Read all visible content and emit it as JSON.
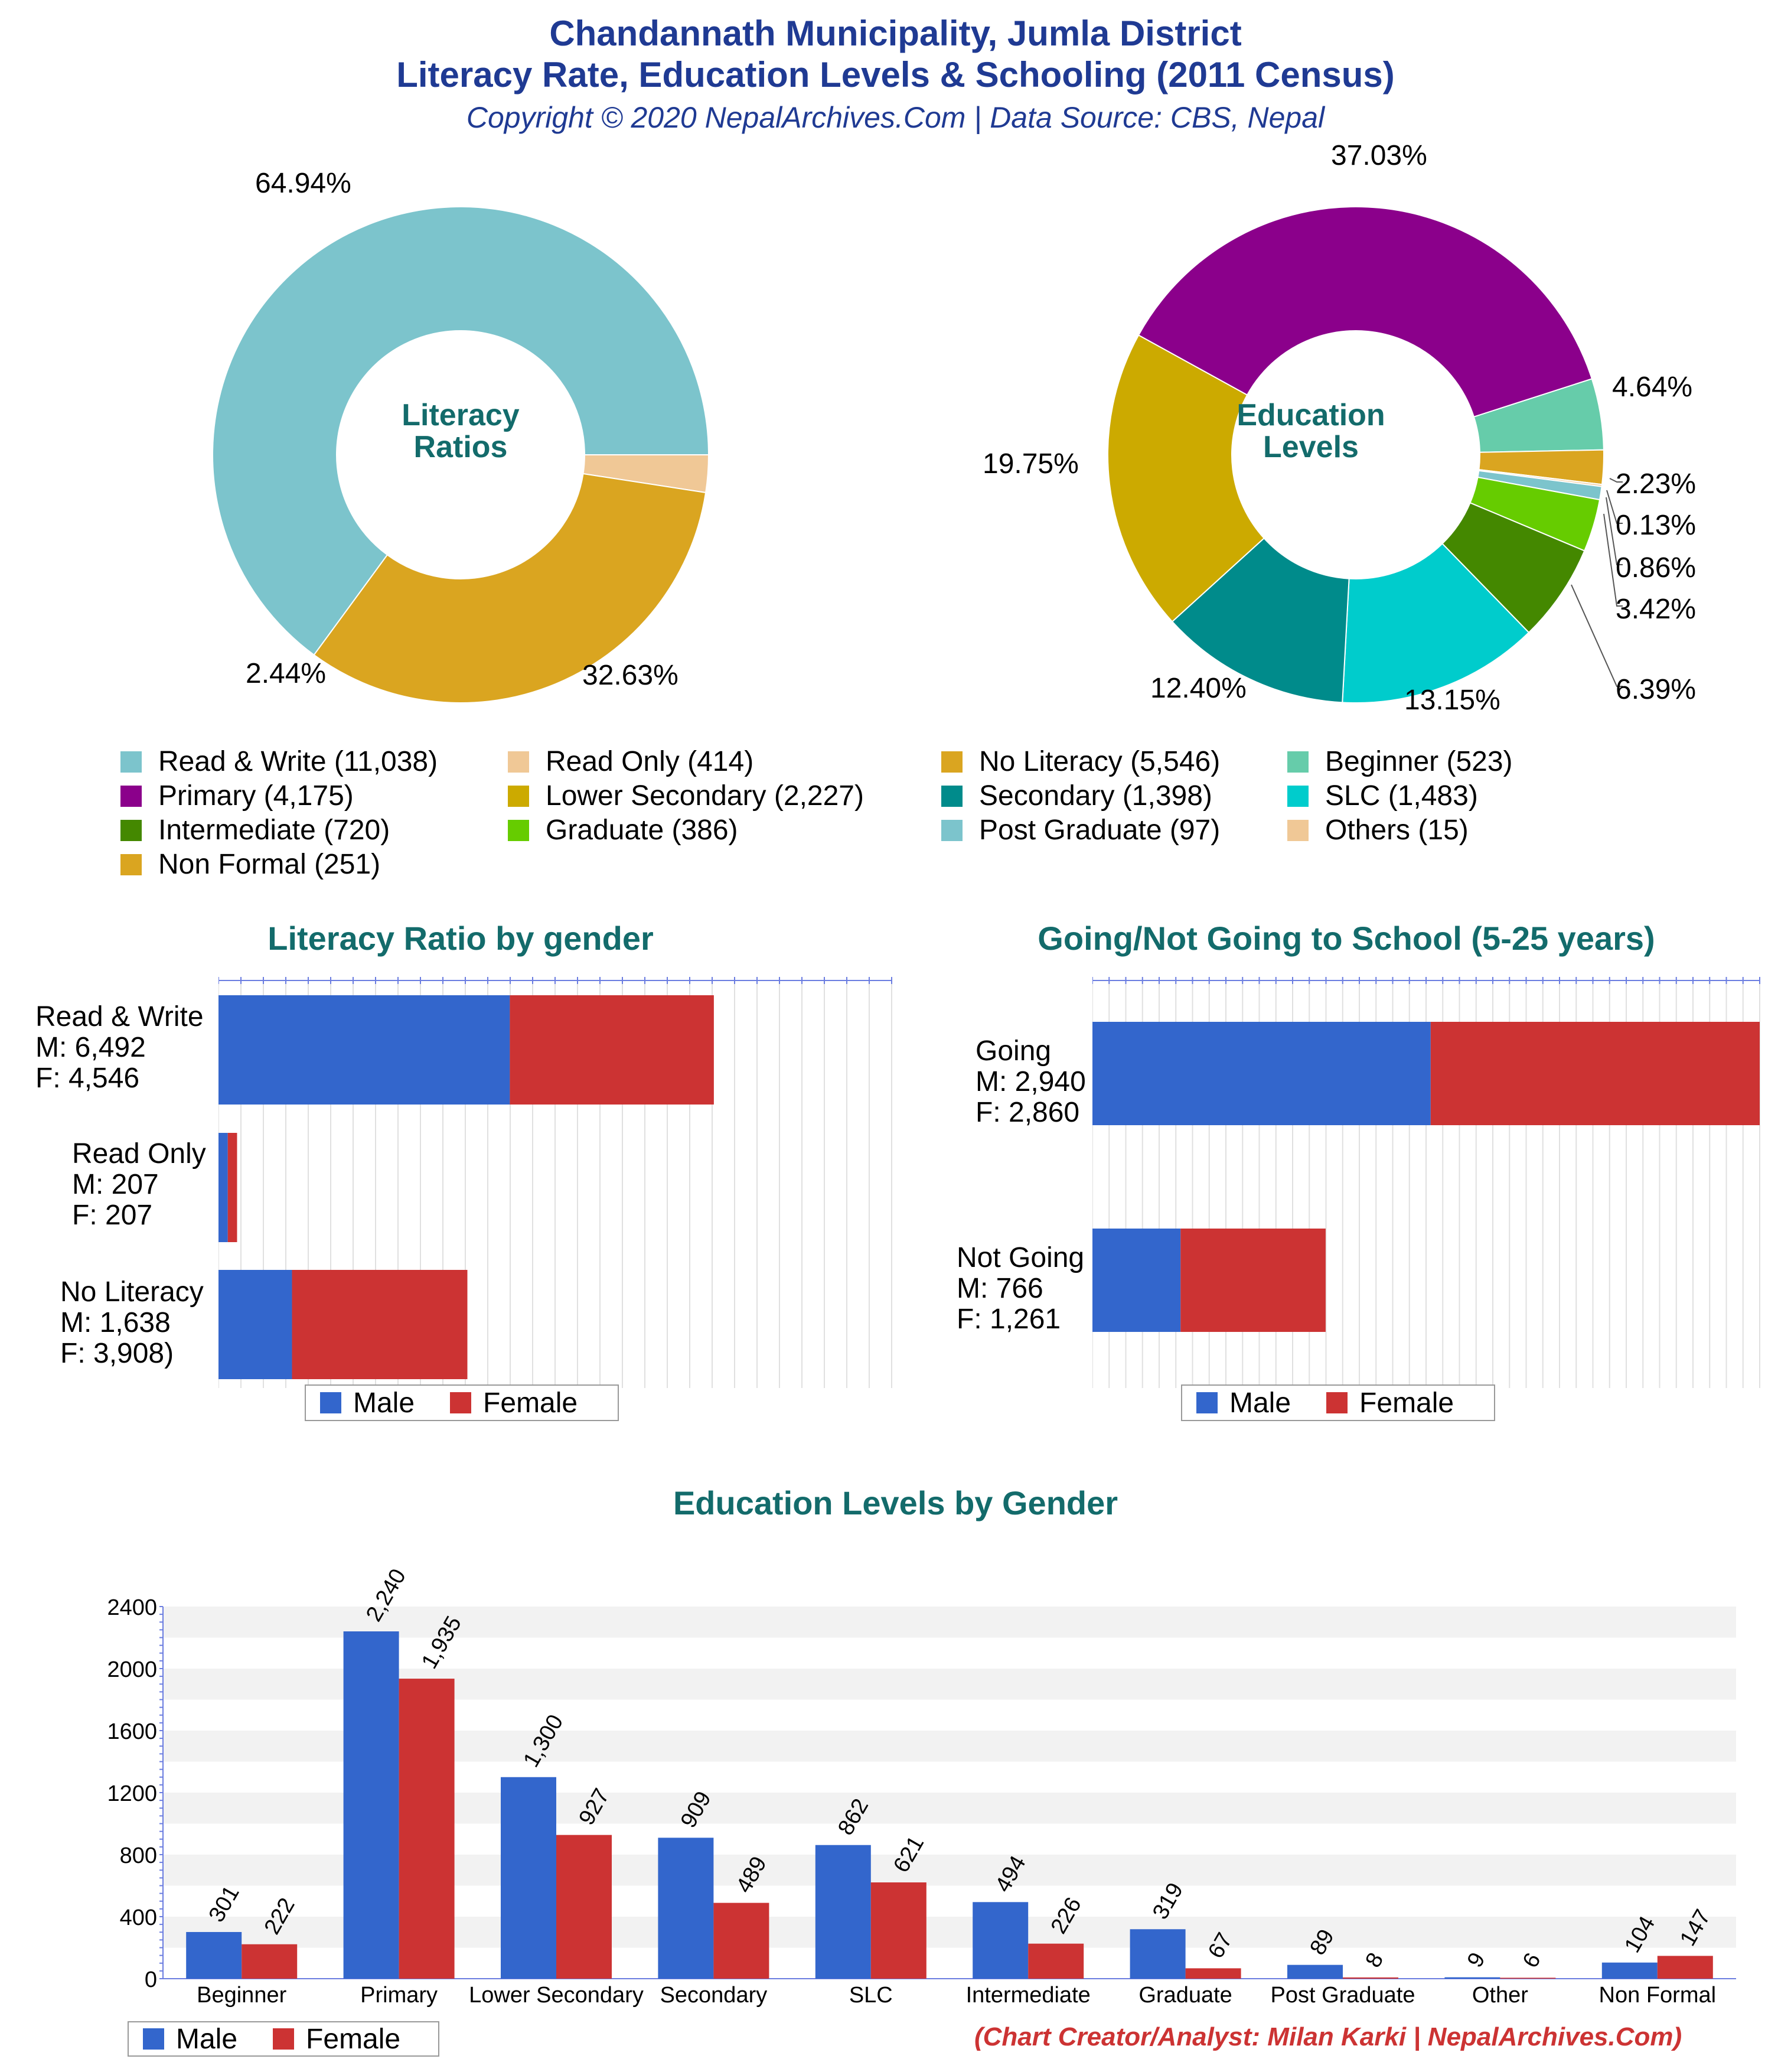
{
  "header": {
    "title_line1": "Chandannath Municipality, Jumla District",
    "title_line2": "Literacy Rate, Education Levels & Schooling (2011 Census)",
    "copyright": "Copyright © 2020 NepalArchives.Com | Data Source: CBS, Nepal"
  },
  "colors": {
    "male": "#3366cc",
    "female": "#cc3333",
    "title": "#1f3a93",
    "section_title": "#136b6b"
  },
  "chart_data": [
    {
      "type": "pie",
      "center_label": [
        "Literacy",
        "Ratios"
      ],
      "slices": [
        {
          "label": "Read & Write",
          "value": 11038,
          "percent": "64.94%",
          "color": "#7cc4cc"
        },
        {
          "label": "Read Only",
          "value": 414,
          "percent": "2.44%",
          "color": "#f0c896"
        },
        {
          "label": "No Literacy",
          "value": 5546,
          "percent": "32.63%",
          "color": "#daa520"
        }
      ]
    },
    {
      "type": "pie",
      "center_label": [
        "Education",
        "Levels"
      ],
      "slices": [
        {
          "label": "Beginner",
          "value": 523,
          "percent": "4.64%",
          "color": "#66ccaa"
        },
        {
          "label": "Non Formal",
          "value": 251,
          "percent": "2.23%",
          "color": "#daa520"
        },
        {
          "label": "Others",
          "value": 15,
          "percent": "0.13%",
          "color": "#f0c896"
        },
        {
          "label": "Post Graduate",
          "value": 97,
          "percent": "0.86%",
          "color": "#7cc4cc"
        },
        {
          "label": "Graduate",
          "value": 386,
          "percent": "3.42%",
          "color": "#66cc00"
        },
        {
          "label": "Intermediate",
          "value": 720,
          "percent": "6.39%",
          "color": "#448800"
        },
        {
          "label": "SLC",
          "value": 1483,
          "percent": "13.15%",
          "color": "#00cccc"
        },
        {
          "label": "Secondary",
          "value": 1398,
          "percent": "12.40%",
          "color": "#008b8b"
        },
        {
          "label": "Lower Secondary",
          "value": 2227,
          "percent": "19.75%",
          "color": "#ccaa00"
        },
        {
          "label": "Primary",
          "value": 4175,
          "percent": "37.03%",
          "color": "#8b008b"
        }
      ]
    },
    {
      "type": "bar",
      "orientation": "horizontal-stacked",
      "title": "Literacy Ratio by gender",
      "categories": [
        "Read & Write",
        "Read Only",
        "No Literacy"
      ],
      "category_labels": [
        [
          "Read & Write",
          "M: 6,492",
          "F: 4,546"
        ],
        [
          "Read Only",
          "M: 207",
          "F: 207"
        ],
        [
          "No Literacy",
          "M: 1,638",
          "F: 3,908)"
        ]
      ],
      "series": [
        {
          "name": "Male",
          "values": [
            6492,
            207,
            1638
          ]
        },
        {
          "name": "Female",
          "values": [
            4546,
            207,
            3908
          ]
        }
      ],
      "xlim": [
        0,
        15000
      ]
    },
    {
      "type": "bar",
      "orientation": "horizontal-stacked",
      "title": "Going/Not Going to School (5-25 years)",
      "categories": [
        "Going",
        "Not Going"
      ],
      "category_labels": [
        [
          "Going",
          "M: 2,940",
          "F: 2,860"
        ],
        [
          "Not Going",
          "M: 766",
          "F: 1,261"
        ]
      ],
      "series": [
        {
          "name": "Male",
          "values": [
            2940,
            766
          ]
        },
        {
          "name": "Female",
          "values": [
            2860,
            1261
          ]
        }
      ],
      "xlim": [
        0,
        5800
      ]
    },
    {
      "type": "bar",
      "title": "Education Levels by Gender",
      "categories": [
        "Beginner",
        "Primary",
        "Lower Secondary",
        "Secondary",
        "SLC",
        "Intermediate",
        "Graduate",
        "Post Graduate",
        "Other",
        "Non Formal"
      ],
      "series": [
        {
          "name": "Male",
          "values": [
            301,
            2240,
            1300,
            909,
            862,
            494,
            319,
            89,
            9,
            104
          ],
          "labels": [
            "301",
            "2,240",
            "1,300",
            "909",
            "862",
            "494",
            "319",
            "89",
            "9",
            "104"
          ]
        },
        {
          "name": "Female",
          "values": [
            222,
            1935,
            927,
            489,
            621,
            226,
            67,
            8,
            6,
            147
          ],
          "labels": [
            "222",
            "1,935",
            "927",
            "489",
            "621",
            "226",
            "67",
            "8",
            "6",
            "147"
          ]
        }
      ],
      "yticks": [
        "0",
        "400",
        "800",
        "1200",
        "1600",
        "2000",
        "2400"
      ],
      "ylim": [
        0,
        2400
      ]
    }
  ],
  "legend": {
    "male": "Male",
    "female": "Female"
  },
  "footer": {
    "credit": "(Chart Creator/Analyst: Milan Karki | NepalArchives.Com)"
  }
}
